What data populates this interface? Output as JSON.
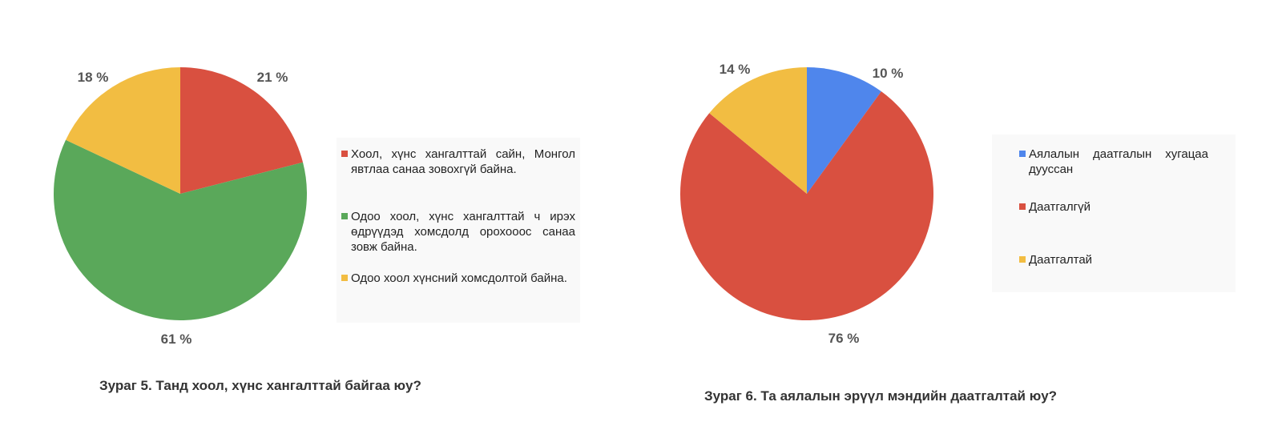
{
  "chart_data": [
    {
      "type": "pie",
      "title": "Зураг 5. Танд хоол, хүнс хангалттай байгаа юу?",
      "slices": [
        {
          "label": "Хоол, хүнс хангалттай  сайн, Монгол явтлаа  санаа зовохгүй байна.",
          "value": 21,
          "value_label": "21 %",
          "color": "#d95040"
        },
        {
          "label": "Одоо хоол, хүнс хангалттай  ч ирэх өдрүүдэд хомсдолд орохооос санаа зовж байна.",
          "value": 61,
          "value_label": "61 %",
          "color": "#5aa85a"
        },
        {
          "label": "Одоо хоол хүнсний хомсдолтой байна.",
          "value": 18,
          "value_label": "18 %",
          "color": "#f2bd42"
        }
      ],
      "legend_position": "right"
    },
    {
      "type": "pie",
      "title": "Зураг 6. Та аялалын эрүүл мэндийн даатгалтай юу?",
      "slices": [
        {
          "label": "Аялалын даатгалын хугацаа дууссан",
          "value": 10,
          "value_label": "10 %",
          "color": "#4f86ec"
        },
        {
          "label": "Даатгалгүй",
          "value": 76,
          "value_label": "76 %",
          "color": "#d95040"
        },
        {
          "label": "Даатгалтай",
          "value": 14,
          "value_label": "14 %",
          "color": "#f2bd42"
        }
      ],
      "legend_position": "right"
    }
  ]
}
